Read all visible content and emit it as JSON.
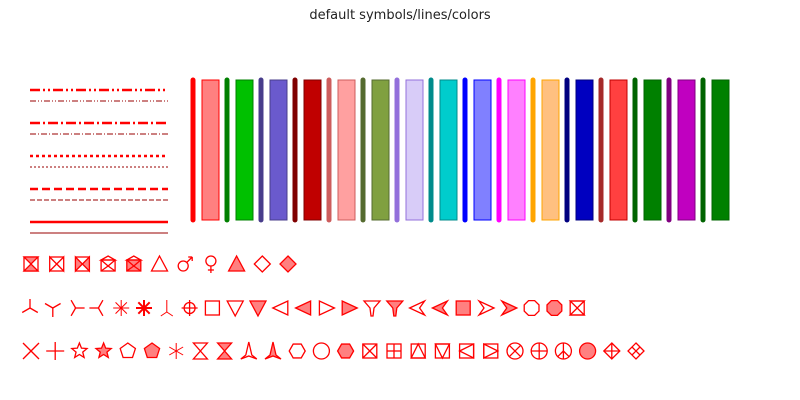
{
  "title": "default symbols/lines/colors",
  "line_samples": {
    "color": "#ff0000",
    "thin_color": "#990000",
    "styles": [
      "dash-dot-dot",
      "dash-dot",
      "dotted",
      "dashed",
      "solid"
    ]
  },
  "color_swatches": [
    {
      "kind": "line",
      "color": "#ff0000"
    },
    {
      "kind": "bar",
      "fill": "#ff8080",
      "stroke": "#ff0000"
    },
    {
      "kind": "line",
      "color": "#008000"
    },
    {
      "kind": "bar",
      "fill": "#00c000",
      "stroke": "#008000"
    },
    {
      "kind": "line",
      "color": "#483d8b"
    },
    {
      "kind": "bar",
      "fill": "#6a5acd",
      "stroke": "#483d8b"
    },
    {
      "kind": "line",
      "color": "#800000"
    },
    {
      "kind": "bar",
      "fill": "#c00000",
      "stroke": "#800000"
    },
    {
      "kind": "line",
      "color": "#cd5c5c"
    },
    {
      "kind": "bar",
      "fill": "#ffa0a0",
      "stroke": "#cd5c5c"
    },
    {
      "kind": "line",
      "color": "#556b2f"
    },
    {
      "kind": "bar",
      "fill": "#80a040",
      "stroke": "#556b2f"
    },
    {
      "kind": "line",
      "color": "#9370db"
    },
    {
      "kind": "bar",
      "fill": "#d8ccf8",
      "stroke": "#9370db"
    },
    {
      "kind": "line",
      "color": "#008b8b"
    },
    {
      "kind": "bar",
      "fill": "#00cccc",
      "stroke": "#008b8b"
    },
    {
      "kind": "line",
      "color": "#0000ff"
    },
    {
      "kind": "bar",
      "fill": "#8080ff",
      "stroke": "#0000ff"
    },
    {
      "kind": "line",
      "color": "#ff00ff"
    },
    {
      "kind": "bar",
      "fill": "#ff80ff",
      "stroke": "#ff00ff"
    },
    {
      "kind": "line",
      "color": "#ffa500"
    },
    {
      "kind": "bar",
      "fill": "#ffc080",
      "stroke": "#ffa500"
    },
    {
      "kind": "line",
      "color": "#000080"
    },
    {
      "kind": "bar",
      "fill": "#0000c0",
      "stroke": "#000080"
    },
    {
      "kind": "line",
      "color": "#a52a2a"
    },
    {
      "kind": "bar",
      "fill": "#ff4040",
      "stroke": "#c00000"
    },
    {
      "kind": "line",
      "color": "#006400"
    },
    {
      "kind": "bar",
      "fill": "#008000",
      "stroke": "#006400"
    },
    {
      "kind": "line",
      "color": "#800080"
    },
    {
      "kind": "bar",
      "fill": "#c000c0",
      "stroke": "#800080"
    },
    {
      "kind": "line",
      "color": "#006400"
    },
    {
      "kind": "bar",
      "fill": "#008000",
      "stroke": "#006400"
    }
  ],
  "symbol_colors": {
    "stroke": "#ff0000",
    "fill": "#ff8080"
  },
  "symbol_rows": [
    [
      "hourglass-box-filled",
      "bowtie-box",
      "bowtie-filled",
      "envelope-box",
      "envelope-box-filled",
      "triangle-up-open",
      "male-symbol",
      "female-symbol",
      "triangle-up-filled",
      "diamond-open",
      "diamond-filled"
    ],
    [
      "y-down",
      "y-up",
      "y-left",
      "y-right",
      "asterisk-open",
      "asterisk-bold",
      "y-down-thin",
      "circle-cross",
      "square-open",
      "triangle-down-open",
      "triangle-down-filled",
      "triangle-left-open",
      "triangle-left-filled",
      "triangle-right-open",
      "triangle-right-filled",
      "tri-y-open",
      "tri-y-filled",
      "arrowhead-left-open",
      "arrowhead-left-filled",
      "square-filled",
      "arrowhead-right-open",
      "arrowhead-right-filled",
      "octagon-open",
      "octagon-filled",
      "hourglass-box-open"
    ],
    [
      "x-cross",
      "plus",
      "star-open",
      "star-filled",
      "pentagon-open",
      "pentagon-filled",
      "asterisk-thin",
      "hourglass-open",
      "hourglass-filled",
      "tri-arrow-open",
      "tri-arrow-filled",
      "hexagon-open",
      "circle-open",
      "hexagon-filled",
      "square-x",
      "square-plus",
      "square-triangle-up",
      "square-triangle-down",
      "square-triangle-left",
      "square-triangle-right",
      "circle-x",
      "circle-plus",
      "peace-icon",
      "circle-filled",
      "diamond-plus",
      "diamond-x"
    ]
  ]
}
